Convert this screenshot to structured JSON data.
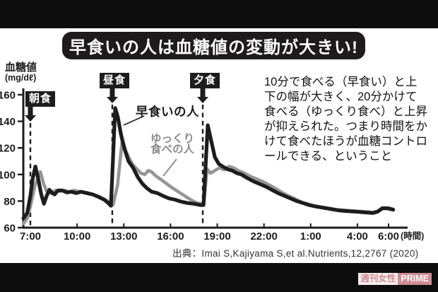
{
  "page": {
    "title": "早食いの人は血糖値の変動が大きい!",
    "annotation_lines": [
      "10分で食べる（早食い）と上",
      "下の幅が大きく、20分かけて",
      "食べる（ゆっくり食べ）と上昇",
      "が抑えられた。つまり時間をか",
      "けて食べたほうが血糖コントロ",
      "ールできる、ということ"
    ],
    "source": "出典：Imai S,Kajiyama S,et al.Nutrients,12,2767 (2020)",
    "watermark": {
      "magazine": "週刊女性",
      "brand": "PRIME"
    }
  },
  "chart_data": {
    "type": "line",
    "title": "早食いの人は血糖値の変動が大きい!",
    "ylabel": "血糖値(mg/dℓ)",
    "ylabel_lines": [
      "血糖値",
      "(mg/dℓ)"
    ],
    "xlabel": "(時間)",
    "ylim": [
      60,
      160
    ],
    "yticks": [
      60,
      80,
      100,
      120,
      140,
      160
    ],
    "x_unit": "hours_after_7:00",
    "xticks": [
      {
        "label": "7:00",
        "h": 0
      },
      {
        "label": "10:00",
        "h": 3
      },
      {
        "label": "13:00",
        "h": 6
      },
      {
        "label": "16:00",
        "h": 9
      },
      {
        "label": "19:00",
        "h": 12
      },
      {
        "label": "22:00",
        "h": 15
      },
      {
        "label": "1:00",
        "h": 18
      },
      {
        "label": "4:00",
        "h": 21
      },
      {
        "label": "6:00",
        "h": 23
      }
    ],
    "meal_markers": [
      {
        "label": "朝食",
        "h": 0
      },
      {
        "label": "昼食",
        "h": 5.26
      },
      {
        "label": "夕食",
        "h": 11.07
      }
    ],
    "ink_color": "#1d1d1d",
    "series": [
      {
        "name": "早食いの人",
        "display_lines": [
          "早食いの人"
        ],
        "color": "#1d1d1d",
        "width": 5.2,
        "points": [
          [
            -0.45,
            67
          ],
          [
            -0.2,
            71
          ],
          [
            0,
            84
          ],
          [
            0.15,
            97
          ],
          [
            0.32,
            106
          ],
          [
            0.5,
            97
          ],
          [
            0.7,
            85
          ],
          [
            0.87,
            78
          ],
          [
            1.05,
            84
          ],
          [
            1.22,
            88.5
          ],
          [
            1.4,
            86
          ],
          [
            1.55,
            85
          ],
          [
            1.78,
            88
          ],
          [
            2.05,
            88
          ],
          [
            2.35,
            86.5
          ],
          [
            2.65,
            87
          ],
          [
            2.95,
            86
          ],
          [
            3.25,
            87
          ],
          [
            3.6,
            86
          ],
          [
            4,
            85
          ],
          [
            4.4,
            83
          ],
          [
            4.75,
            81
          ],
          [
            5,
            78.5
          ],
          [
            5.17,
            76.5
          ],
          [
            5.45,
            150
          ],
          [
            5.62,
            143
          ],
          [
            5.82,
            130
          ],
          [
            6.05,
            119
          ],
          [
            6.3,
            110
          ],
          [
            6.6,
            105
          ],
          [
            6.9,
            98
          ],
          [
            7.2,
            93
          ],
          [
            7.5,
            89.5
          ],
          [
            7.8,
            87
          ],
          [
            8.15,
            86
          ],
          [
            8.5,
            84
          ],
          [
            8.9,
            82
          ],
          [
            9.3,
            81
          ],
          [
            9.7,
            79.5
          ],
          [
            10.1,
            78.5
          ],
          [
            10.5,
            78
          ],
          [
            10.9,
            77
          ],
          [
            11.12,
            77
          ],
          [
            11.39,
            137
          ],
          [
            11.6,
            126
          ],
          [
            11.85,
            113
          ],
          [
            12.1,
            108
          ],
          [
            12.35,
            106
          ],
          [
            12.65,
            104
          ],
          [
            12.95,
            103
          ],
          [
            13.25,
            101
          ],
          [
            13.55,
            100
          ],
          [
            13.9,
            97.5
          ],
          [
            14.3,
            95
          ],
          [
            14.7,
            93
          ],
          [
            15.1,
            91
          ],
          [
            15.5,
            88.5
          ],
          [
            15.9,
            86
          ],
          [
            16.3,
            84
          ],
          [
            16.7,
            82
          ],
          [
            17.1,
            80
          ],
          [
            17.5,
            78.5
          ],
          [
            17.9,
            77
          ],
          [
            18.3,
            76
          ],
          [
            18.8,
            75
          ],
          [
            19.3,
            74
          ],
          [
            19.8,
            73
          ],
          [
            20.3,
            72.5
          ],
          [
            20.9,
            72
          ],
          [
            21.5,
            71.5
          ],
          [
            22,
            71
          ],
          [
            22.3,
            72
          ],
          [
            22.6,
            74.5
          ],
          [
            22.95,
            74.5
          ],
          [
            23.3,
            73.5
          ]
        ]
      },
      {
        "name": "ゆっくり食べの人",
        "display_lines": [
          "ゆっくり",
          "食べの人"
        ],
        "color": "#969696",
        "width": 4.6,
        "points": [
          [
            -0.45,
            63
          ],
          [
            -0.2,
            67
          ],
          [
            0,
            76
          ],
          [
            0.3,
            92
          ],
          [
            0.64,
            102
          ],
          [
            0.85,
            93
          ],
          [
            1.05,
            87.5
          ],
          [
            1.3,
            86
          ],
          [
            1.6,
            88
          ],
          [
            1.9,
            87.5
          ],
          [
            2.2,
            88
          ],
          [
            2.5,
            87
          ],
          [
            2.8,
            88
          ],
          [
            3.2,
            87
          ],
          [
            3.6,
            86.5
          ],
          [
            4,
            85
          ],
          [
            4.4,
            83.5
          ],
          [
            4.8,
            81
          ],
          [
            5.1,
            79
          ],
          [
            5.32,
            77.5
          ],
          [
            5.6,
            92
          ],
          [
            5.9,
            126
          ],
          [
            6.12,
            118
          ],
          [
            6.35,
            112
          ],
          [
            6.6,
            107
          ],
          [
            6.85,
            104
          ],
          [
            7.1,
            101
          ],
          [
            7.35,
            100
          ],
          [
            7.57,
            103
          ],
          [
            7.78,
            102
          ],
          [
            8.05,
            99
          ],
          [
            8.35,
            96.5
          ],
          [
            8.7,
            93.5
          ],
          [
            9.1,
            90
          ],
          [
            9.5,
            87
          ],
          [
            9.9,
            84
          ],
          [
            10.3,
            81
          ],
          [
            10.7,
            78.5
          ],
          [
            11,
            78
          ],
          [
            11.15,
            80
          ],
          [
            11.35,
            104
          ],
          [
            11.57,
            101
          ],
          [
            11.85,
            103
          ],
          [
            12.15,
            105
          ],
          [
            12.45,
            103.5
          ],
          [
            12.75,
            106
          ],
          [
            13.05,
            105
          ],
          [
            13.35,
            103
          ],
          [
            13.75,
            101
          ],
          [
            14.15,
            98.5
          ],
          [
            14.55,
            96.5
          ],
          [
            14.95,
            94.5
          ],
          [
            15.35,
            92
          ],
          [
            15.75,
            89.5
          ],
          [
            16.15,
            86.5
          ],
          [
            16.55,
            84
          ],
          [
            16.95,
            82
          ],
          [
            17.35,
            79.5
          ],
          [
            17.75,
            78
          ],
          [
            18.2,
            76.5
          ],
          [
            18.7,
            75.5
          ],
          [
            19.2,
            74.5
          ],
          [
            19.7,
            73.5
          ],
          [
            20.3,
            73
          ],
          [
            20.9,
            72.5
          ],
          [
            21.5,
            72
          ],
          [
            22,
            71.5
          ],
          [
            22.3,
            72.5
          ],
          [
            22.6,
            75
          ],
          [
            22.95,
            75
          ],
          [
            23.3,
            74
          ]
        ]
      }
    ]
  }
}
